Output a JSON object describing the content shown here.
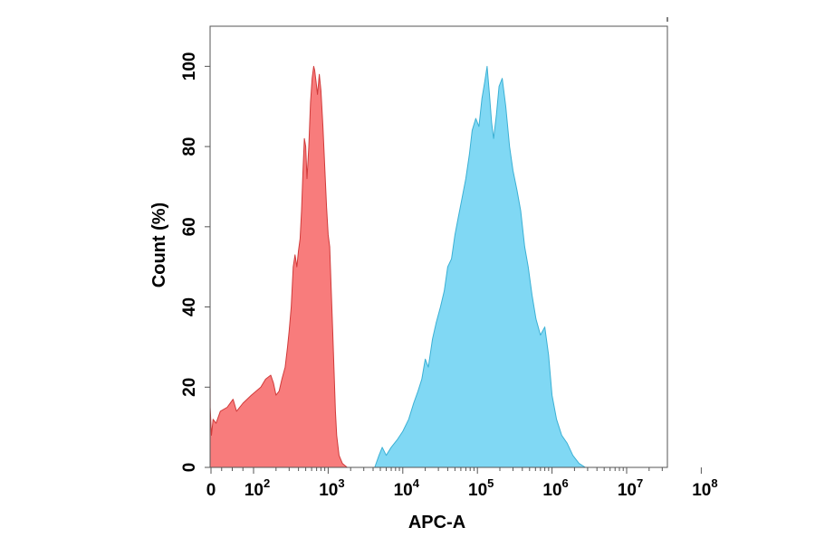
{
  "chart_data": {
    "type": "area",
    "title": "",
    "xlabel": "APC-A",
    "ylabel": "Count (%)",
    "x_scale": "biexponential",
    "xlim": [
      -10,
      100000000
    ],
    "ylim": [
      0,
      110
    ],
    "y_ticks": [
      0,
      20,
      40,
      60,
      80,
      100
    ],
    "y_tick_labels": [
      "0",
      "20",
      "40",
      "60",
      "80",
      "100"
    ],
    "x_ticks": [
      {
        "value": 0,
        "base": "0",
        "exp": ""
      },
      {
        "value": 100,
        "base": "10",
        "exp": "2"
      },
      {
        "value": 1000,
        "base": "10",
        "exp": "3"
      },
      {
        "value": 10000,
        "base": "10",
        "exp": "4"
      },
      {
        "value": 100000,
        "base": "10",
        "exp": "5"
      },
      {
        "value": 1000000,
        "base": "10",
        "exp": "6"
      },
      {
        "value": 10000000,
        "base": "10",
        "exp": "7"
      },
      {
        "value": 100000000,
        "base": "10",
        "exp": "8"
      }
    ],
    "grid": false,
    "legend": "none",
    "series": [
      {
        "fill": "#f87c7c",
        "stroke": "#d03a3a",
        "points": [
          [
            -5,
            30
          ],
          [
            -2,
            15
          ],
          [
            1,
            8
          ],
          [
            5,
            12
          ],
          [
            12,
            11
          ],
          [
            22,
            14
          ],
          [
            38,
            15
          ],
          [
            52,
            17
          ],
          [
            60,
            14
          ],
          [
            75,
            16
          ],
          [
            95,
            18
          ],
          [
            125,
            20
          ],
          [
            145,
            22
          ],
          [
            170,
            23
          ],
          [
            185,
            21
          ],
          [
            200,
            18
          ],
          [
            220,
            19
          ],
          [
            240,
            22
          ],
          [
            265,
            25
          ],
          [
            285,
            30
          ],
          [
            300,
            34
          ],
          [
            320,
            40
          ],
          [
            340,
            50
          ],
          [
            360,
            53
          ],
          [
            380,
            50
          ],
          [
            400,
            54
          ],
          [
            420,
            57
          ],
          [
            440,
            64
          ],
          [
            460,
            74
          ],
          [
            480,
            82
          ],
          [
            500,
            80
          ],
          [
            520,
            72
          ],
          [
            550,
            80
          ],
          [
            580,
            91
          ],
          [
            610,
            97
          ],
          [
            640,
            100
          ],
          [
            660,
            99
          ],
          [
            690,
            96
          ],
          [
            720,
            93
          ],
          [
            760,
            98
          ],
          [
            800,
            94
          ],
          [
            850,
            85
          ],
          [
            900,
            75
          ],
          [
            950,
            65
          ],
          [
            1000,
            58
          ],
          [
            1050,
            55
          ],
          [
            1100,
            44
          ],
          [
            1150,
            34
          ],
          [
            1200,
            24
          ],
          [
            1250,
            14
          ],
          [
            1300,
            8
          ],
          [
            1400,
            3
          ],
          [
            1550,
            1
          ],
          [
            1800,
            0
          ]
        ]
      },
      {
        "fill": "#80d8f4",
        "stroke": "#3bb0d4",
        "points": [
          [
            4200,
            0
          ],
          [
            4800,
            3
          ],
          [
            5300,
            5
          ],
          [
            6000,
            3
          ],
          [
            7000,
            5
          ],
          [
            8500,
            7
          ],
          [
            10000,
            9
          ],
          [
            12000,
            12
          ],
          [
            14000,
            16
          ],
          [
            16000,
            19
          ],
          [
            18000,
            22
          ],
          [
            20000,
            27
          ],
          [
            22000,
            25
          ],
          [
            25000,
            32
          ],
          [
            28000,
            36
          ],
          [
            32000,
            40
          ],
          [
            36000,
            44
          ],
          [
            40000,
            50
          ],
          [
            45000,
            52
          ],
          [
            50000,
            58
          ],
          [
            55000,
            62
          ],
          [
            62000,
            67
          ],
          [
            70000,
            72
          ],
          [
            78000,
            78
          ],
          [
            85000,
            84
          ],
          [
            95000,
            87
          ],
          [
            105000,
            85
          ],
          [
            115000,
            92
          ],
          [
            125000,
            96
          ],
          [
            135000,
            100
          ],
          [
            145000,
            93
          ],
          [
            155000,
            86
          ],
          [
            165000,
            82
          ],
          [
            180000,
            88
          ],
          [
            195000,
            95
          ],
          [
            215000,
            97
          ],
          [
            240000,
            90
          ],
          [
            270000,
            80
          ],
          [
            300000,
            74
          ],
          [
            340000,
            69
          ],
          [
            380000,
            64
          ],
          [
            430000,
            55
          ],
          [
            480000,
            50
          ],
          [
            540000,
            43
          ],
          [
            610000,
            37
          ],
          [
            700000,
            33
          ],
          [
            800000,
            35
          ],
          [
            900000,
            28
          ],
          [
            1000000,
            18
          ],
          [
            1150000,
            12
          ],
          [
            1350000,
            8
          ],
          [
            1600000,
            6
          ],
          [
            1900000,
            3
          ],
          [
            2300000,
            1
          ],
          [
            2800000,
            0
          ]
        ]
      }
    ]
  }
}
